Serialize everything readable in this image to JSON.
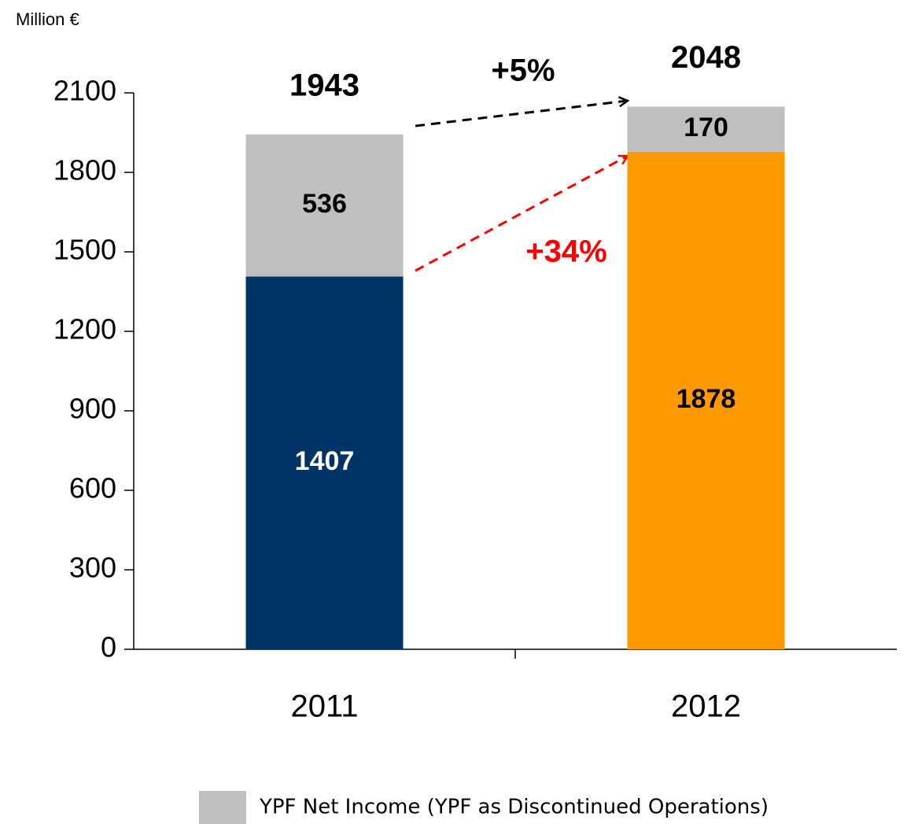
{
  "chart_data": {
    "type": "stacked_bar",
    "y_axis_label": "Million €",
    "categories": [
      "2011",
      "2012"
    ],
    "series": [
      {
        "colors": [
          "#003366",
          "#ff9900"
        ],
        "label_colors": [
          "#ffffff",
          "#000000"
        ],
        "values": [
          1407,
          1878
        ]
      },
      {
        "name": "YPF Net Income (YPF as Discontinued Operations)",
        "color": "#bfbfbf",
        "label_colors": [
          "#000000",
          "#000000"
        ],
        "values": [
          536,
          170
        ]
      }
    ],
    "totals": [
      1943,
      2048
    ],
    "annotations": [
      {
        "text": "+5%",
        "color": "#000000"
      },
      {
        "text": "+34%",
        "color": "#ff0000"
      }
    ],
    "ylim": [
      0,
      2100
    ],
    "yticks": [
      0,
      300,
      600,
      900,
      1200,
      1500,
      1800,
      2100
    ],
    "legend": "bottom"
  }
}
